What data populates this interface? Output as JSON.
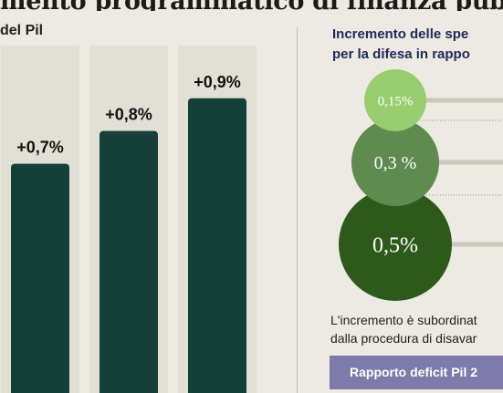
{
  "headline": "mento programmatico di finanza pub",
  "left_panel": {
    "subtitle": "del Pil"
  },
  "right_panel": {
    "title_line1": "Incremento delle spe",
    "title_line2": "per la difesa in rappo",
    "note_line1": "L'incremento è subordinat",
    "note_line2": "dalla procedura di disavar",
    "deficit_box": "Rapporto deficit Pil 2"
  },
  "colors": {
    "bar": "#173f3a",
    "bar_stripe": "#e2dfd5",
    "bubble_small": "#97cc6f",
    "bubble_medium": "#5f8a50",
    "bubble_large": "#2d5a1a",
    "deficit_box": "#7e7aa9"
  },
  "chart_data": [
    {
      "type": "bar",
      "title": "del Pil",
      "categories": [],
      "values": [
        0.7,
        0.8,
        0.9
      ],
      "labels": [
        "+0,7%",
        "+0,8%",
        "+0,9%"
      ],
      "ylim": [
        0,
        1.2
      ],
      "grid": false
    },
    {
      "type": "bubble",
      "title": "Incremento delle spe per la difesa in rappo",
      "values": [
        0.15,
        0.3,
        0.5
      ],
      "labels": [
        "0,15%",
        "0,3 %",
        "0,5%"
      ]
    }
  ]
}
